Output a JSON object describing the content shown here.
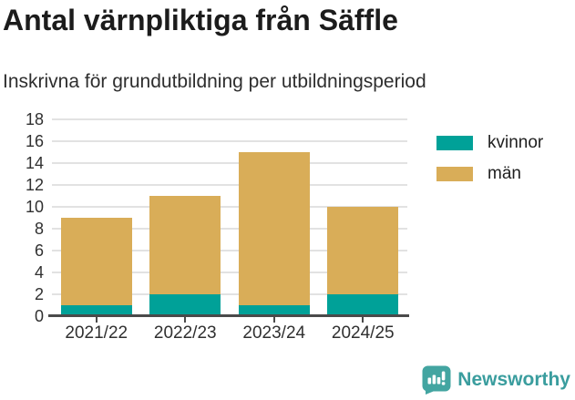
{
  "header": {
    "title": "Antal värnpliktiga från Säffle",
    "subtitle": "Inskrivna för grundutbildning per utbildningsperiod"
  },
  "chart_data": {
    "type": "bar",
    "stacked": true,
    "title": "Antal värnpliktiga från Säffle",
    "subtitle": "Inskrivna för grundutbildning per utbildningsperiod",
    "categories": [
      "2021/22",
      "2022/23",
      "2023/24",
      "2024/25"
    ],
    "series": [
      {
        "name": "kvinnor",
        "color": "#00a198",
        "values": [
          1,
          2,
          1,
          2
        ]
      },
      {
        "name": "män",
        "color": "#d9ad58",
        "values": [
          8,
          9,
          14,
          8
        ]
      }
    ],
    "stacked_totals": [
      9,
      11,
      15,
      10
    ],
    "xlabel": "",
    "ylabel": "",
    "ylim": [
      0,
      18
    ],
    "ytick_step": 2,
    "grid": true,
    "legend_position": "right"
  },
  "legend_note": "legend rows generated from chart_data.series",
  "footer": {
    "brand": "Newsworthy",
    "brand_color": "#3a9d9e",
    "logo_icon": "bar-chart-speech-bubble-icon"
  },
  "colors": {
    "kvinnor": "#00a198",
    "man": "#d9ad58",
    "axis": "#4a4a4a",
    "gridline": "#e2e2e2",
    "text": "#303030",
    "title": "#1c1c1c",
    "brand": "#3a9d9e",
    "background": "#ffffff"
  }
}
